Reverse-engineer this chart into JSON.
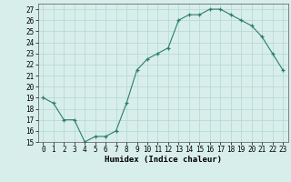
{
  "x": [
    0,
    1,
    2,
    3,
    4,
    5,
    6,
    7,
    8,
    9,
    10,
    11,
    12,
    13,
    14,
    15,
    16,
    17,
    18,
    19,
    20,
    21,
    22,
    23
  ],
  "y": [
    19,
    18.5,
    17,
    17,
    15,
    15.5,
    15.5,
    16,
    18.5,
    21.5,
    22.5,
    23,
    23.5,
    26,
    26.5,
    26.5,
    27,
    27,
    26.5,
    26,
    25.5,
    24.5,
    23,
    21.5
  ],
  "line_color": "#2d7d6e",
  "marker": "+",
  "marker_color": "#2d7d6e",
  "background_color": "#d8eeeb",
  "grid_color": "#b0d8d2",
  "xlabel": "Humidex (Indice chaleur)",
  "ylim": [
    15,
    27.5
  ],
  "xlim": [
    -0.5,
    23.5
  ],
  "yticks": [
    15,
    16,
    17,
    18,
    19,
    20,
    21,
    22,
    23,
    24,
    25,
    26,
    27
  ],
  "xticks": [
    0,
    1,
    2,
    3,
    4,
    5,
    6,
    7,
    8,
    9,
    10,
    11,
    12,
    13,
    14,
    15,
    16,
    17,
    18,
    19,
    20,
    21,
    22,
    23
  ],
  "tick_fontsize": 5.5,
  "label_fontsize": 6.5
}
